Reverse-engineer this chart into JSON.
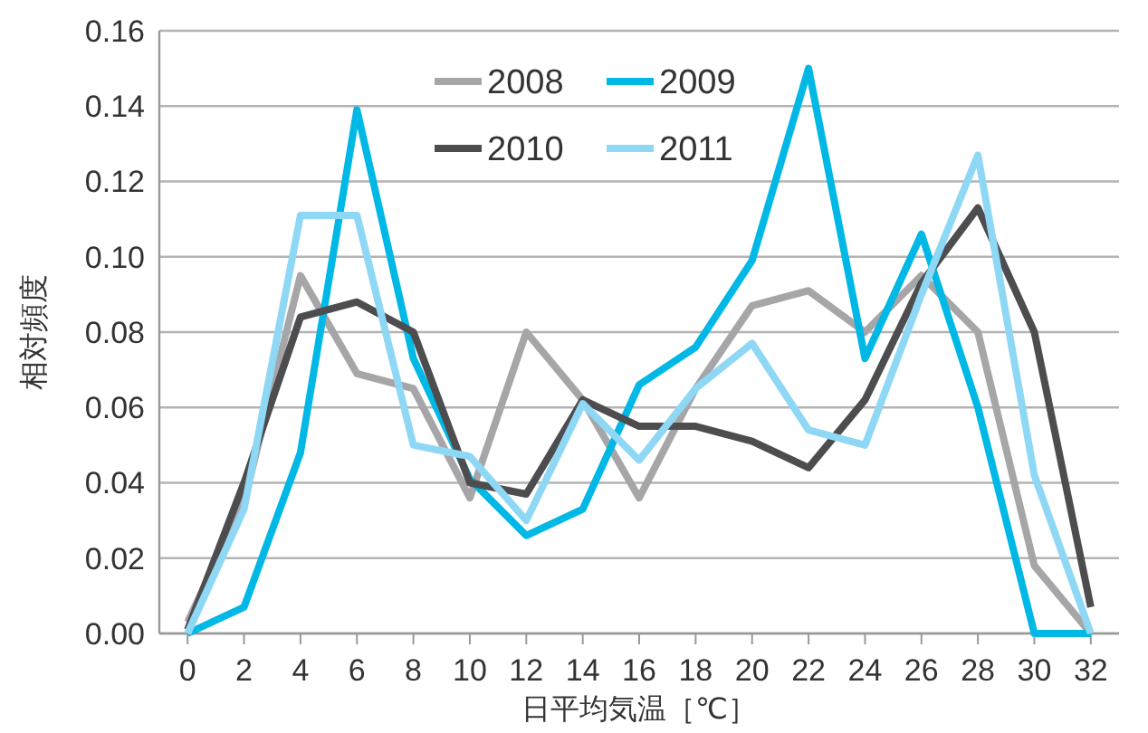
{
  "chart_data": {
    "type": "line",
    "xlabel": "日平均気温［℃］",
    "ylabel": "相対頻度",
    "x": [
      0,
      2,
      4,
      6,
      8,
      10,
      12,
      14,
      16,
      18,
      20,
      22,
      24,
      26,
      28,
      30,
      32
    ],
    "series": [
      {
        "name": "2008",
        "color": "#a6a6a8",
        "values": [
          0.003,
          0.035,
          0.095,
          0.069,
          0.065,
          0.036,
          0.08,
          0.062,
          0.036,
          0.065,
          0.087,
          0.091,
          0.08,
          0.095,
          0.08,
          0.018,
          0
        ]
      },
      {
        "name": "2009",
        "color": "#00b8e6",
        "values": [
          0,
          0.007,
          0.048,
          0.139,
          0.073,
          0.041,
          0.026,
          0.033,
          0.066,
          0.076,
          0.099,
          0.15,
          0.073,
          0.106,
          0.06,
          0,
          0
        ]
      },
      {
        "name": "2010",
        "color": "#4d4d4f",
        "values": [
          0.001,
          0.04,
          0.084,
          0.088,
          0.08,
          0.04,
          0.037,
          0.062,
          0.055,
          0.055,
          0.051,
          0.044,
          0.062,
          0.093,
          0.113,
          0.08,
          0.007
        ]
      },
      {
        "name": "2011",
        "color": "#8fd8f5",
        "values": [
          0,
          0.033,
          0.111,
          0.111,
          0.05,
          0.047,
          0.03,
          0.061,
          0.046,
          0.065,
          0.077,
          0.054,
          0.05,
          0.09,
          0.127,
          0.042,
          0
        ]
      }
    ],
    "xlim": [
      -1,
      33
    ],
    "xticks": [
      0,
      2,
      4,
      6,
      8,
      10,
      12,
      14,
      16,
      18,
      20,
      22,
      24,
      26,
      28,
      30,
      32
    ],
    "ylim": [
      0,
      0.16
    ],
    "yticks": [
      {
        "value": 0,
        "label": "0.00"
      },
      {
        "value": 0.02,
        "label": "0.02"
      },
      {
        "value": 0.04,
        "label": "0.04"
      },
      {
        "value": 0.06,
        "label": "0.06"
      },
      {
        "value": 0.08,
        "label": "0.08"
      },
      {
        "value": 0.1,
        "label": "0.10"
      },
      {
        "value": 0.12,
        "label": "0.12"
      },
      {
        "value": 0.14,
        "label": "0.14"
      },
      {
        "value": 0.16,
        "label": "0.16"
      }
    ],
    "grid": "y",
    "legend": "top",
    "marker": "none",
    "line_style": "solid"
  }
}
